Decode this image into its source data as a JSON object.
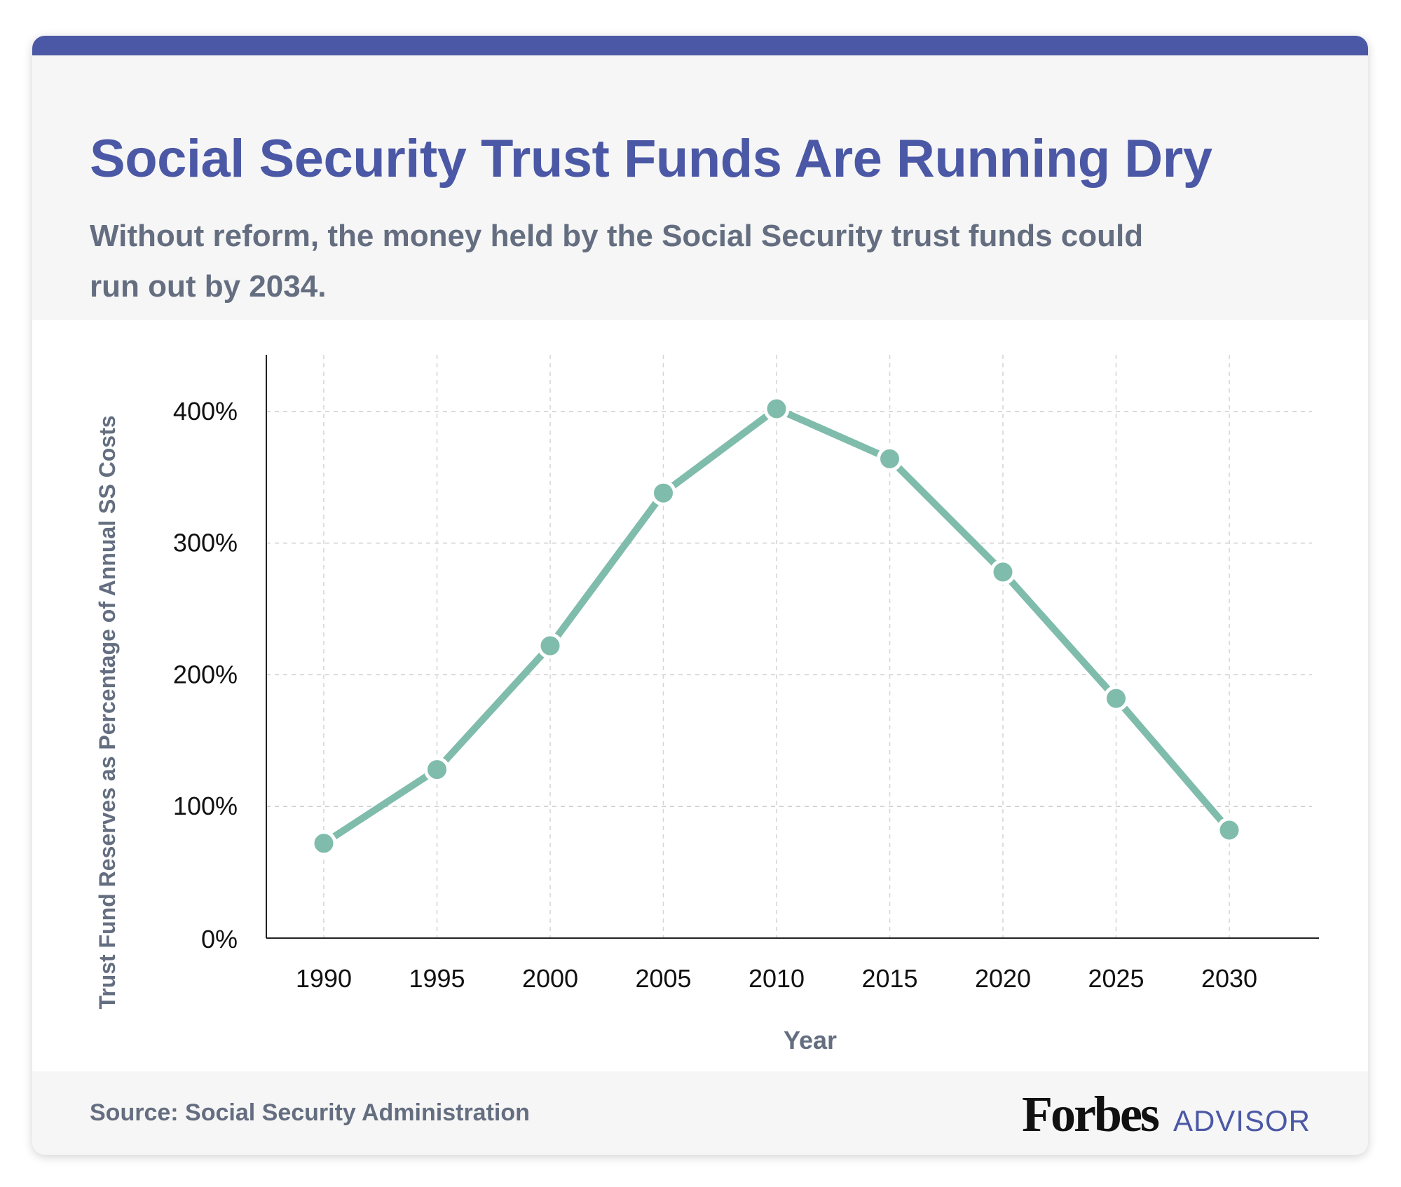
{
  "header": {
    "title": "Social Security Trust Funds Are Running Dry",
    "subtitle": "Without reform, the money held by the Social Security trust funds could run out by 2034."
  },
  "footer": {
    "source": "Source: Social Security Administration",
    "logo_brand": "Forbes",
    "logo_suffix": "ADVISOR"
  },
  "colors": {
    "accent": "#4b58a5",
    "line": "#7fbcab",
    "text_muted": "#646e80"
  },
  "chart_data": {
    "type": "line",
    "title": "Social Security Trust Funds Are Running Dry",
    "xlabel": "Year",
    "ylabel": "Trust Fund Reserves as Percentage of Annual SS Costs",
    "categories": [
      "1990",
      "1995",
      "2000",
      "2005",
      "2010",
      "2015",
      "2020",
      "2025",
      "2030"
    ],
    "series": [
      {
        "name": "Trust Fund Reserves",
        "values": [
          72,
          128,
          222,
          338,
          402,
          364,
          278,
          182,
          82
        ]
      }
    ],
    "yticks": [
      0,
      100,
      200,
      300,
      400
    ],
    "ytick_labels": [
      "0%",
      "100%",
      "200%",
      "300%",
      "400%"
    ],
    "ylim": [
      0,
      443
    ],
    "grid": true
  }
}
